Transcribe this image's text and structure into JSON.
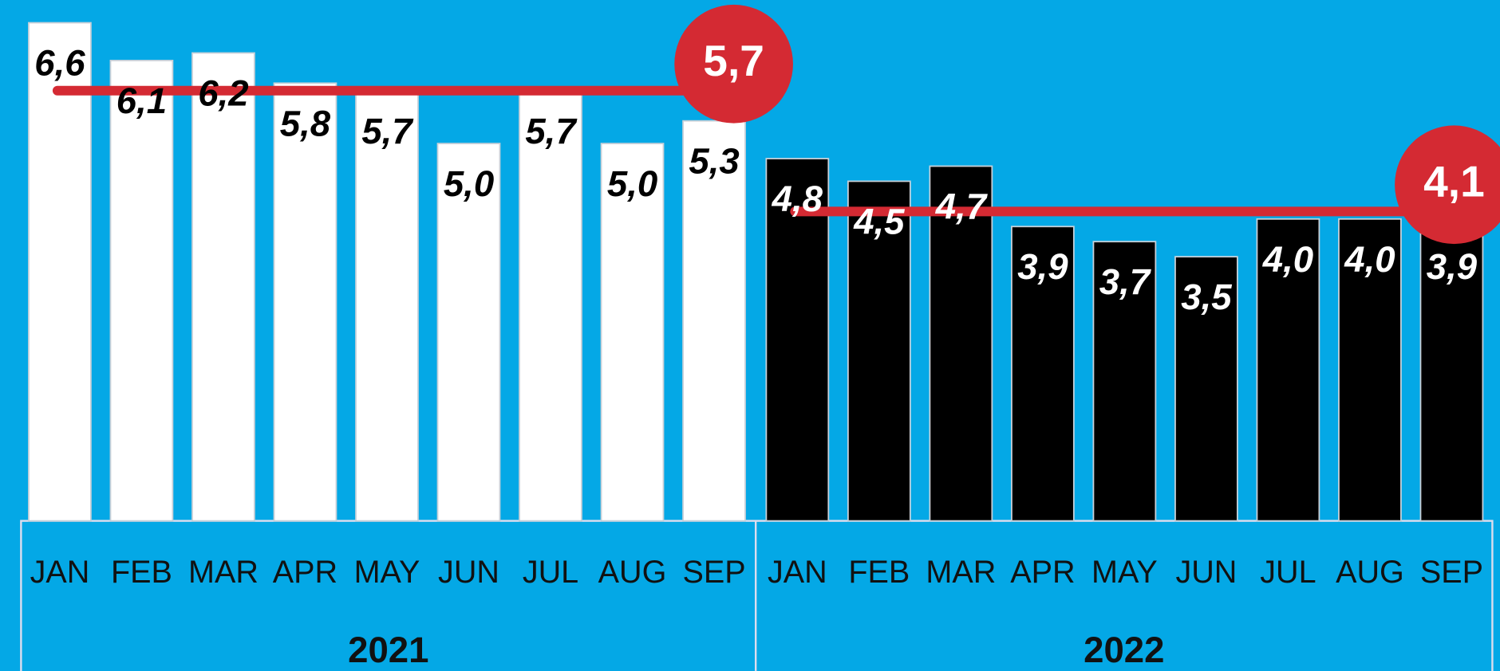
{
  "chart_data": {
    "type": "bar",
    "categories": [
      "JAN",
      "FEB",
      "MAR",
      "APR",
      "MAY",
      "JUN",
      "JUL",
      "AUG",
      "SEP"
    ],
    "ylim": [
      0,
      6.9
    ],
    "series": [
      {
        "name": "2021",
        "color": "#ffffff",
        "label_color": "#000000",
        "values": [
          6.6,
          6.1,
          6.2,
          5.8,
          5.7,
          5.0,
          5.7,
          5.0,
          5.3
        ],
        "value_labels": [
          "6,6",
          "6,1",
          "6,2",
          "5,8",
          "5,7",
          "5,0",
          "5,7",
          "5,0",
          "5,3"
        ],
        "average": 5.7,
        "average_label": "5,7"
      },
      {
        "name": "2022",
        "color": "#000000",
        "label_color": "#ffffff",
        "values": [
          4.8,
          4.5,
          4.7,
          3.9,
          3.7,
          3.5,
          4.0,
          4.0,
          3.9
        ],
        "value_labels": [
          "4,8",
          "4,5",
          "4,7",
          "3,9",
          "3,7",
          "3,5",
          "4,0",
          "4,0",
          "3,9"
        ],
        "average": 4.1,
        "average_label": "4,1"
      }
    ],
    "average_color": "#d42a33"
  }
}
